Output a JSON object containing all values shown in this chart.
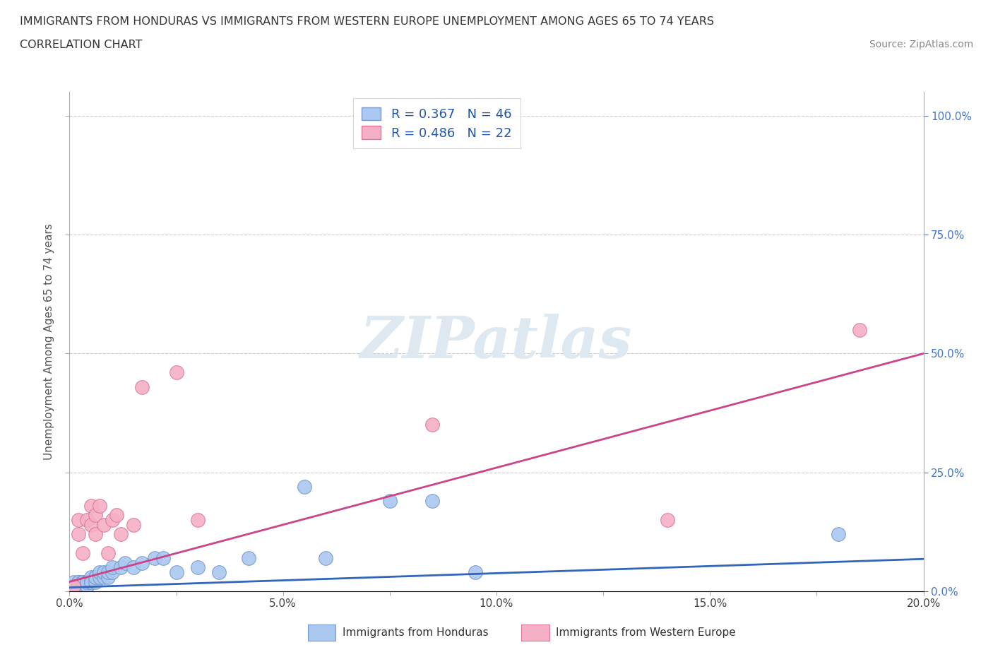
{
  "title_line1": "IMMIGRANTS FROM HONDURAS VS IMMIGRANTS FROM WESTERN EUROPE UNEMPLOYMENT AMONG AGES 65 TO 74 YEARS",
  "title_line2": "CORRELATION CHART",
  "source_text": "Source: ZipAtlas.com",
  "ylabel": "Unemployment Among Ages 65 to 74 years",
  "xlim": [
    0.0,
    0.2
  ],
  "ylim": [
    0.0,
    1.05
  ],
  "xtick_labels": [
    "0.0%",
    "",
    "5.0%",
    "",
    "10.0%",
    "",
    "15.0%",
    "",
    "20.0%"
  ],
  "xtick_values": [
    0.0,
    0.025,
    0.05,
    0.075,
    0.1,
    0.125,
    0.15,
    0.175,
    0.2
  ],
  "ytick_labels": [
    "0.0%",
    "25.0%",
    "50.0%",
    "75.0%",
    "100.0%"
  ],
  "ytick_values": [
    0.0,
    0.25,
    0.5,
    0.75,
    1.0
  ],
  "honduras_color": "#aac8f0",
  "honduras_edge_color": "#7799cc",
  "western_europe_color": "#f5b0c5",
  "western_europe_edge_color": "#dd7799",
  "legend_label_honduras": "R = 0.367   N = 46",
  "legend_label_we": "R = 0.486   N = 22",
  "footer_label_honduras": "Immigrants from Honduras",
  "footer_label_we": "Immigrants from Western Europe",
  "honduras_line_color": "#3366bb",
  "western_europe_line_color": "#cc4488",
  "watermark_text": "ZIPatlas",
  "watermark_color": "#dde8f0",
  "grid_color": "#cccccc",
  "background_color": "#ffffff",
  "right_tick_color": "#4477cc",
  "honduras_x": [
    0.001,
    0.001,
    0.001,
    0.002,
    0.002,
    0.002,
    0.002,
    0.003,
    0.003,
    0.003,
    0.003,
    0.004,
    0.004,
    0.004,
    0.004,
    0.005,
    0.005,
    0.005,
    0.005,
    0.006,
    0.006,
    0.006,
    0.007,
    0.007,
    0.008,
    0.008,
    0.009,
    0.009,
    0.01,
    0.01,
    0.012,
    0.013,
    0.015,
    0.017,
    0.02,
    0.022,
    0.025,
    0.03,
    0.035,
    0.042,
    0.055,
    0.06,
    0.075,
    0.085,
    0.095,
    0.18
  ],
  "honduras_y": [
    0.01,
    0.01,
    0.02,
    0.01,
    0.02,
    0.01,
    0.02,
    0.01,
    0.02,
    0.01,
    0.02,
    0.01,
    0.02,
    0.01,
    0.02,
    0.02,
    0.02,
    0.03,
    0.02,
    0.03,
    0.02,
    0.03,
    0.03,
    0.04,
    0.03,
    0.04,
    0.03,
    0.04,
    0.04,
    0.05,
    0.05,
    0.06,
    0.05,
    0.06,
    0.07,
    0.07,
    0.04,
    0.05,
    0.04,
    0.07,
    0.22,
    0.07,
    0.19,
    0.19,
    0.04,
    0.12
  ],
  "western_europe_x": [
    0.001,
    0.002,
    0.002,
    0.003,
    0.004,
    0.005,
    0.005,
    0.006,
    0.006,
    0.007,
    0.008,
    0.009,
    0.01,
    0.011,
    0.012,
    0.015,
    0.017,
    0.025,
    0.03,
    0.085,
    0.14,
    0.185
  ],
  "western_europe_y": [
    0.01,
    0.12,
    0.15,
    0.08,
    0.15,
    0.14,
    0.18,
    0.16,
    0.12,
    0.18,
    0.14,
    0.08,
    0.15,
    0.16,
    0.12,
    0.14,
    0.43,
    0.46,
    0.15,
    0.35,
    0.15,
    0.55
  ],
  "honduras_line_x": [
    0.0,
    0.2
  ],
  "honduras_line_y": [
    0.008,
    0.068
  ],
  "western_europe_line_x": [
    0.0,
    0.2
  ],
  "western_europe_line_y": [
    0.02,
    0.5
  ]
}
